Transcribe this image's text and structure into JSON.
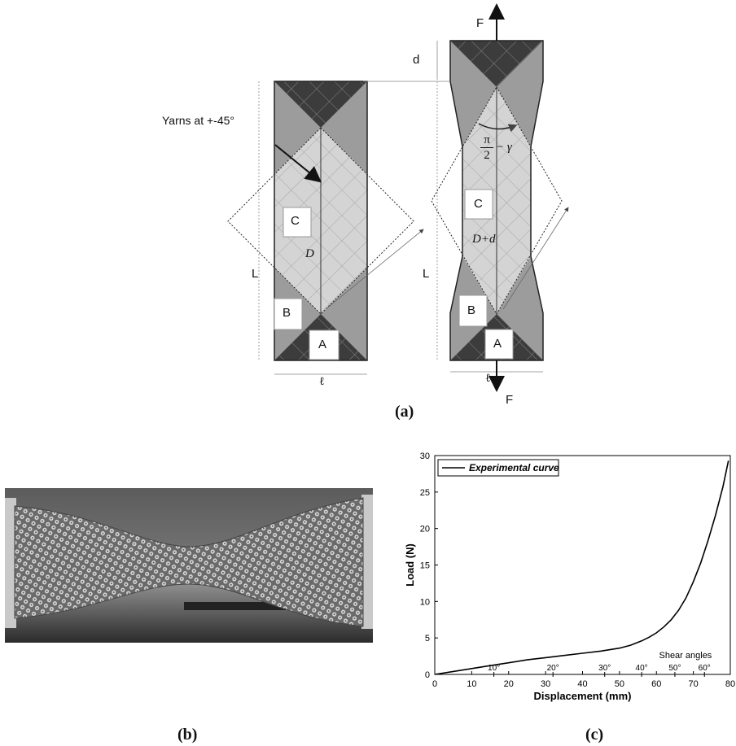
{
  "figure_a": {
    "caption": "(a)",
    "annotation": "Yarns at +-45°",
    "left_specimen": {
      "region_labels": [
        "C",
        "B",
        "A"
      ],
      "diag_label": "D",
      "length_label": "L",
      "width_label": "ℓ"
    },
    "right_specimen": {
      "region_labels": [
        "C",
        "B",
        "A"
      ],
      "diag_label": "D+d",
      "length_label": "L",
      "width_label": "ℓ",
      "force_top": "F",
      "force_bottom": "F",
      "displacement_label": "d",
      "angle_numerator": "π",
      "angle_denominator": "2",
      "angle_suffix": "− γ"
    }
  },
  "figure_b": {
    "caption": "(b)"
  },
  "figure_c": {
    "caption": "(c)"
  },
  "chart_data": {
    "type": "line",
    "xlabel": "Displacement (mm)",
    "ylabel": "Load (N)",
    "xlim": [
      0,
      80
    ],
    "ylim": [
      0,
      30
    ],
    "xticks": [
      0,
      10,
      20,
      30,
      40,
      50,
      60,
      70,
      80
    ],
    "yticks": [
      0,
      5,
      10,
      15,
      20,
      25,
      30
    ],
    "legend_position": "top-left",
    "grid": false,
    "series": [
      {
        "name": "Experimental curve",
        "x": [
          0,
          5,
          10,
          15,
          20,
          25,
          30,
          35,
          40,
          45,
          50,
          53,
          56,
          58,
          60,
          62,
          64,
          66,
          68,
          70,
          72,
          74,
          76,
          78,
          79.5
        ],
        "y": [
          0,
          0.4,
          0.8,
          1.2,
          1.6,
          2.0,
          2.3,
          2.6,
          2.9,
          3.2,
          3.6,
          4.0,
          4.6,
          5.1,
          5.7,
          6.5,
          7.5,
          8.8,
          10.5,
          12.7,
          15.3,
          18.4,
          21.8,
          25.7,
          29.3
        ]
      }
    ],
    "annotations": {
      "shear_title": "Shear angles",
      "shear_marks": [
        {
          "label": "10°",
          "x": 16
        },
        {
          "label": "20°",
          "x": 32
        },
        {
          "label": "30°",
          "x": 46
        },
        {
          "label": "40°",
          "x": 56
        },
        {
          "label": "50°",
          "x": 65
        },
        {
          "label": "60°",
          "x": 73
        }
      ]
    }
  }
}
